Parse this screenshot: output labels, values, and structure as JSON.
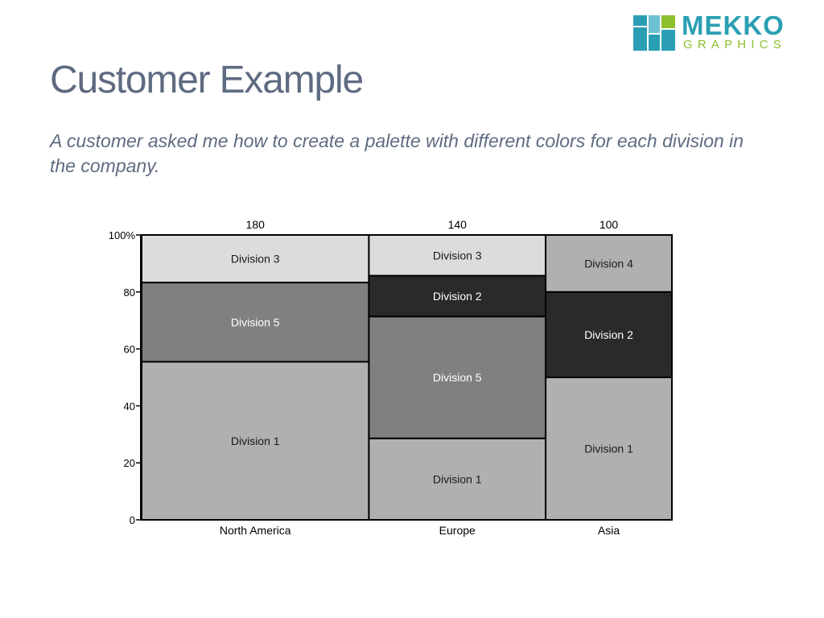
{
  "title": "Customer Example",
  "subtitle": "A customer asked me how to create a palette with different colors for each division in the company.",
  "logo": {
    "word1": "MEKKO",
    "word2": "GRAPHICS",
    "brand_color": "#2a9fb3",
    "accent_color": "#8dbf2e"
  },
  "chart_data": {
    "type": "mekko",
    "title": "",
    "categories": [
      "North America",
      "Europe",
      "Asia"
    ],
    "column_totals": [
      180,
      140,
      100
    ],
    "y_axis": {
      "range": [
        0,
        100
      ],
      "ticks": [
        "0",
        "20",
        "40",
        "60",
        "80",
        "100%"
      ]
    },
    "grid": false,
    "columns": [
      {
        "name": "North America",
        "total": 180,
        "segments": [
          {
            "name": "Division 1",
            "value": 55.5,
            "color": "#b0b0b0",
            "label_color": "#1a1a1a"
          },
          {
            "name": "Division 5",
            "value": 27.8,
            "color": "#808080",
            "label_color": "#ffffff"
          },
          {
            "name": "Division 3",
            "value": 16.7,
            "color": "#dcdcdc",
            "label_color": "#1a1a1a"
          }
        ]
      },
      {
        "name": "Europe",
        "total": 140,
        "segments": [
          {
            "name": "Division 1",
            "value": 28.6,
            "color": "#b0b0b0",
            "label_color": "#1a1a1a"
          },
          {
            "name": "Division 5",
            "value": 42.8,
            "color": "#808080",
            "label_color": "#ffffff"
          },
          {
            "name": "Division 2",
            "value": 14.3,
            "color": "#2a2a2a",
            "label_color": "#ffffff"
          },
          {
            "name": "Division 3",
            "value": 14.3,
            "color": "#dcdcdc",
            "label_color": "#1a1a1a"
          }
        ]
      },
      {
        "name": "Asia",
        "total": 100,
        "segments": [
          {
            "name": "Division 1",
            "value": 50,
            "color": "#b0b0b0",
            "label_color": "#1a1a1a"
          },
          {
            "name": "Division 2",
            "value": 30,
            "color": "#2a2a2a",
            "label_color": "#ffffff"
          },
          {
            "name": "Division 4",
            "value": 20,
            "color": "#b0b0b0",
            "label_color": "#1a1a1a"
          }
        ]
      }
    ]
  }
}
